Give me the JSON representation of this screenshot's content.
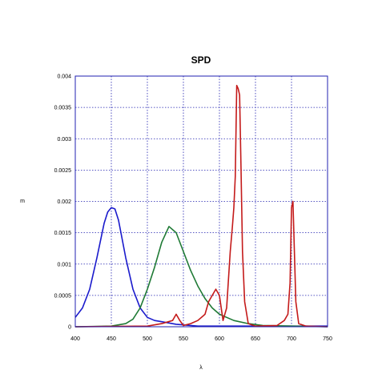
{
  "chart_data": {
    "type": "line",
    "title": "SPD",
    "xlabel": "λ",
    "ylabel": "m",
    "xlim": [
      400,
      750
    ],
    "ylim": [
      0,
      0.004
    ],
    "x_ticks": [
      "400",
      "450",
      "500",
      "550",
      "600",
      "650",
      "700",
      "750"
    ],
    "y_ticks": [
      "0",
      "0.0005",
      "0.001",
      "0.0015",
      "0.002",
      "0.0025",
      "0.003",
      "0.0035",
      "0.004"
    ],
    "grid": true,
    "colors": {
      "blue": "#1a1acc",
      "green": "#1f7a35",
      "red": "#c41a1a",
      "axes": "#2020b0",
      "grid": "#2020b0"
    },
    "series": [
      {
        "color": "blue",
        "x": [
          400,
          410,
          420,
          430,
          440,
          445,
          450,
          455,
          460,
          465,
          470,
          480,
          490,
          500,
          510,
          520,
          530,
          540,
          550,
          560,
          570,
          600,
          650,
          700,
          750
        ],
        "values": [
          0.00015,
          0.0003,
          0.0006,
          0.0011,
          0.00165,
          0.00183,
          0.0019,
          0.00188,
          0.0017,
          0.0014,
          0.0011,
          0.0006,
          0.0003,
          0.00015,
          0.0001,
          8e-05,
          6e-05,
          4e-05,
          3e-05,
          2e-05,
          1e-05,
          1e-05,
          1e-05,
          1e-05,
          1e-05
        ]
      },
      {
        "color": "green",
        "x": [
          400,
          450,
          470,
          480,
          490,
          500,
          510,
          520,
          530,
          540,
          550,
          560,
          570,
          580,
          590,
          600,
          610,
          620,
          640,
          660,
          700,
          750
        ],
        "values": [
          0,
          1e-05,
          5e-05,
          0.00012,
          0.0003,
          0.0006,
          0.00095,
          0.00135,
          0.0016,
          0.0015,
          0.0012,
          0.0009,
          0.00065,
          0.00045,
          0.0003,
          0.0002,
          0.00015,
          0.0001,
          5e-05,
          2e-05,
          1e-05,
          0
        ]
      },
      {
        "color": "red",
        "x": [
          400,
          500,
          520,
          535,
          540,
          545,
          550,
          560,
          570,
          580,
          585,
          590,
          595,
          600,
          605,
          610,
          615,
          618,
          620,
          622,
          624,
          626,
          628,
          630,
          632,
          635,
          640,
          650,
          680,
          690,
          695,
          698,
          700,
          702,
          704,
          706,
          710,
          720,
          750
        ],
        "values": [
          0,
          1e-05,
          5e-05,
          0.0001,
          0.0002,
          0.0001,
          2e-05,
          5e-05,
          0.0001,
          0.0002,
          0.0004,
          0.0005,
          0.0006,
          0.0005,
          0.0001,
          0.0003,
          0.0012,
          0.0016,
          0.0019,
          0.0024,
          0.00385,
          0.0038,
          0.0037,
          0.0025,
          0.0012,
          0.0004,
          5e-05,
          1e-05,
          2e-05,
          0.0001,
          0.0002,
          0.0007,
          0.0019,
          0.002,
          0.0012,
          0.0004,
          5e-05,
          1e-05,
          0
        ]
      }
    ]
  }
}
